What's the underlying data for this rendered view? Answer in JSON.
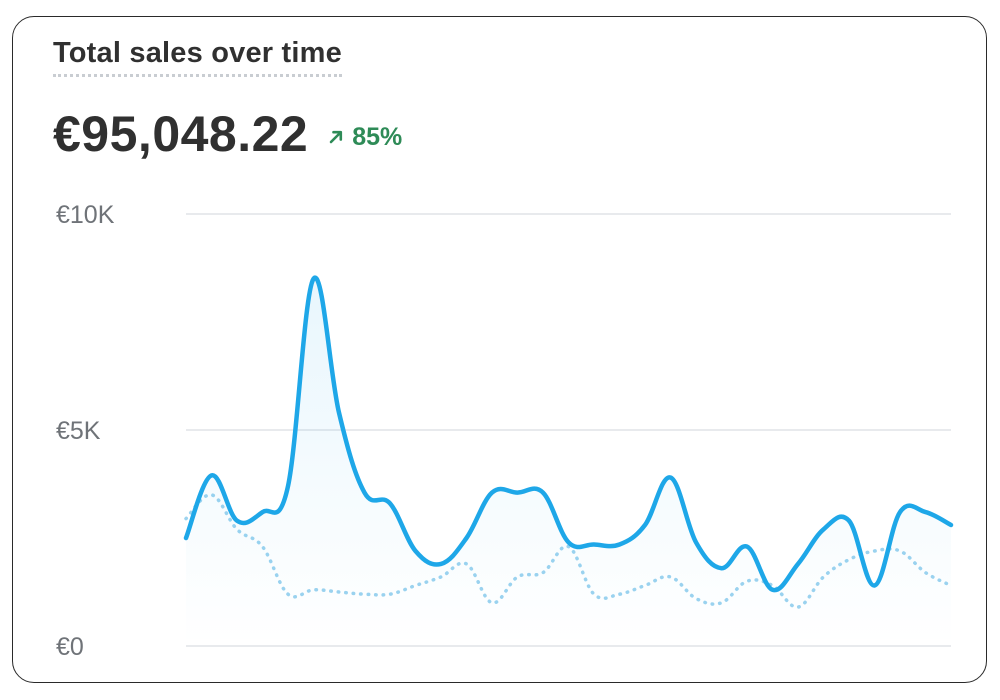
{
  "card": {
    "title": "Total sales over time",
    "total": "€95,048.22",
    "delta": "85%",
    "delta_icon": "arrow-up-right-icon",
    "delta_color": "#2e8b57"
  },
  "chart_data": {
    "type": "line",
    "title": "Total sales over time",
    "xlabel": "",
    "ylabel": "",
    "ylim": [
      0,
      10000
    ],
    "yticks": [
      {
        "value": 10000,
        "label": "€10K"
      },
      {
        "value": 5000,
        "label": "€5K"
      },
      {
        "value": 0,
        "label": "€0"
      }
    ],
    "grid": true,
    "legend": "none",
    "x": [
      0,
      1,
      2,
      3,
      4,
      5,
      6,
      7,
      8,
      9,
      10,
      11,
      12,
      13,
      14,
      15,
      16,
      17,
      18,
      19,
      20,
      21,
      22,
      23,
      24,
      25,
      26,
      27,
      28,
      29,
      30
    ],
    "series": [
      {
        "style": "solid",
        "color": "#1ea7e8",
        "values": [
          2500,
          3950,
          2900,
          3100,
          3700,
          8500,
          5400,
          3550,
          3300,
          2200,
          1900,
          2500,
          3550,
          3550,
          3550,
          2400,
          2350,
          2350,
          2800,
          3900,
          2400,
          1800,
          2300,
          1300,
          1900,
          2700,
          2900,
          1400,
          3100,
          3100,
          2800
        ]
      },
      {
        "style": "dotted",
        "color": "#9cd3ef",
        "values": [
          2950,
          3500,
          2700,
          2300,
          1200,
          1300,
          1250,
          1200,
          1200,
          1400,
          1600,
          1900,
          1000,
          1600,
          1700,
          2300,
          1200,
          1200,
          1400,
          1600,
          1100,
          1000,
          1500,
          1400,
          900,
          1600,
          2000,
          2200,
          2200,
          1700,
          1400
        ]
      }
    ]
  }
}
